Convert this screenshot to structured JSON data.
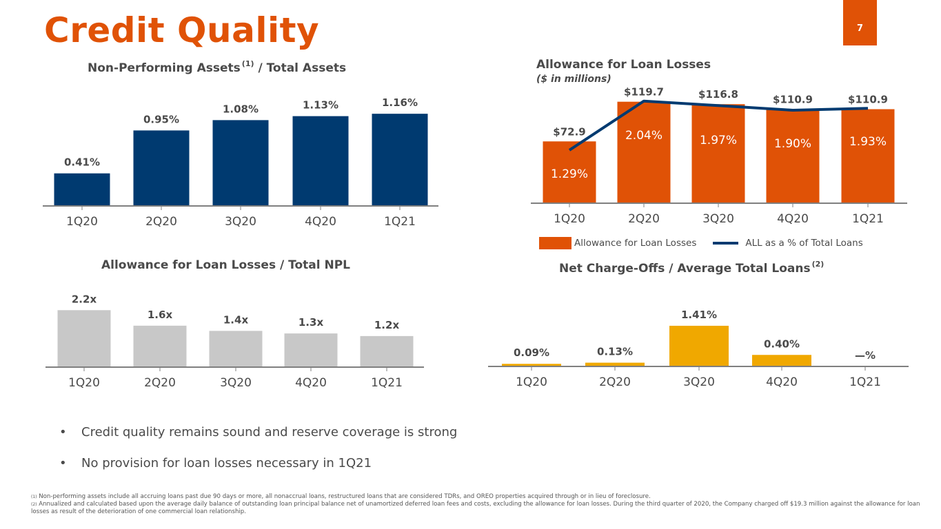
{
  "page": {
    "title": "Credit Quality",
    "page_number": "7",
    "brand_color": "#E05206"
  },
  "bullets": [
    "Credit quality remains sound and reserve coverage is strong",
    "No provision for loan losses necessary in 1Q21"
  ],
  "footnotes": [
    {
      "marker": "(1)",
      "text": "Non-performing assets include all accruing loans past due 90 days or more, all nonaccrual loans, restructured loans that are considered TDRs, and OREO properties acquired through or in lieu of foreclosure."
    },
    {
      "marker": "(2)",
      "text": "Annualized and calculated based upon the average daily balance of outstanding loan principal balance net of unamortized deferred loan fees and costs, excluding the allowance for loan losses. During the third quarter of 2020, the Company charged off $19.3 million against the allowance for loan losses as result of the deterioration of one commercial loan relationship."
    }
  ],
  "chart_data": [
    {
      "id": "npa",
      "type": "bar",
      "title": "Non-Performing Assets",
      "title_sup": "(1)",
      "title_suffix": "/ Total Assets",
      "categories": [
        "1Q20",
        "2Q20",
        "3Q20",
        "4Q20",
        "1Q21"
      ],
      "values": [
        0.41,
        0.95,
        1.08,
        1.13,
        1.16
      ],
      "labels": [
        "0.41%",
        "0.95%",
        "1.08%",
        "1.13%",
        "1.16%"
      ],
      "unit": "%",
      "color": "#003A70",
      "xlabel": "",
      "ylabel": "",
      "ylim": [
        0,
        1.3
      ],
      "grid": false
    },
    {
      "id": "all",
      "type": "bar",
      "title": "Allowance for Loan Losses",
      "subtitle": "($ in millions)",
      "categories": [
        "1Q20",
        "2Q20",
        "3Q20",
        "4Q20",
        "1Q21"
      ],
      "series": [
        {
          "name": "Allowance for Loan Losses",
          "type": "bar",
          "values": [
            72.9,
            119.7,
            116.8,
            110.9,
            110.9
          ],
          "labels": [
            "$72.9",
            "$119.7",
            "$116.8",
            "$110.9",
            "$110.9"
          ],
          "color": "#E05206"
        },
        {
          "name": "ALL as a % of Total Loans",
          "type": "line",
          "values": [
            1.29,
            2.04,
            1.97,
            1.9,
            1.93
          ],
          "labels": [
            "1.29%",
            "2.04%",
            "1.97%",
            "1.90%",
            "1.93%"
          ],
          "color": "#003A70"
        }
      ],
      "legend_position": "bottom",
      "ylim": [
        0,
        130
      ],
      "ylim_secondary": [
        0,
        2.5
      ],
      "grid": false
    },
    {
      "id": "npl",
      "type": "bar",
      "title": "Allowance for Loan Losses / Total NPL",
      "categories": [
        "1Q20",
        "2Q20",
        "3Q20",
        "4Q20",
        "1Q21"
      ],
      "values": [
        2.2,
        1.6,
        1.4,
        1.3,
        1.2
      ],
      "labels": [
        "2.2x",
        "1.6x",
        "1.4x",
        "1.3x",
        "1.2x"
      ],
      "color": "#C8C8C8",
      "ylim": [
        0,
        2.5
      ],
      "grid": false
    },
    {
      "id": "nco",
      "type": "bar",
      "title": "Net Charge-Offs / Average Total Loans",
      "title_sup": "(2)",
      "categories": [
        "1Q20",
        "2Q20",
        "3Q20",
        "4Q20",
        "1Q21"
      ],
      "values": [
        0.09,
        0.13,
        1.41,
        0.4,
        0
      ],
      "labels": [
        "0.09%",
        "0.13%",
        "1.41%",
        "0.40%",
        "—%"
      ],
      "color": "#F0A800",
      "ylim": [
        0,
        1.6
      ],
      "grid": false
    }
  ]
}
